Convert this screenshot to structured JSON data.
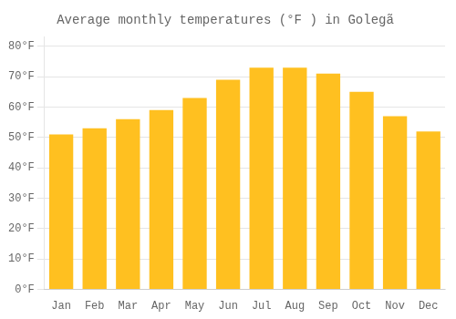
{
  "chart_data": {
    "type": "bar",
    "title": "Average monthly temperatures (°F ) in Golegã",
    "categories": [
      "Jan",
      "Feb",
      "Mar",
      "Apr",
      "May",
      "Jun",
      "Jul",
      "Aug",
      "Sep",
      "Oct",
      "Nov",
      "Dec"
    ],
    "values": [
      51,
      53,
      56,
      59,
      63,
      69,
      73,
      73,
      71,
      65,
      57,
      52
    ],
    "color": "#FFC020",
    "ylim": [
      0,
      83
    ],
    "yticks": [
      {
        "value": 0,
        "label": "0°F"
      },
      {
        "value": 10,
        "label": "10°F"
      },
      {
        "value": 20,
        "label": "20°F"
      },
      {
        "value": 30,
        "label": "30°F"
      },
      {
        "value": 40,
        "label": "40°F"
      },
      {
        "value": 50,
        "label": "50°F"
      },
      {
        "value": 60,
        "label": "60°F"
      },
      {
        "value": 70,
        "label": "70°F"
      },
      {
        "value": 80,
        "label": "80°F"
      }
    ],
    "grid": true
  }
}
